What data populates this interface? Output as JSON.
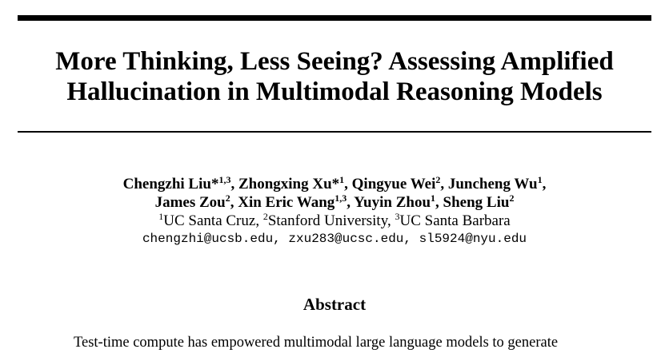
{
  "paper": {
    "title_line1": "More Thinking, Less Seeing? Assessing Amplified",
    "title_line2": "Hallucination in Multimodal Reasoning Models",
    "authors_line1": [
      {
        "name": "Chengzhi Liu*",
        "sup": "1,3",
        "sep": ", "
      },
      {
        "name": "Zhongxing Xu*",
        "sup": "1",
        "sep": ", "
      },
      {
        "name": "Qingyue Wei",
        "sup": "2",
        "sep": ", "
      },
      {
        "name": "Juncheng Wu",
        "sup": "1",
        "sep": ","
      }
    ],
    "authors_line2": [
      {
        "name": "James Zou",
        "sup": "2",
        "sep": ", "
      },
      {
        "name": "Xin Eric Wang",
        "sup": "1,3",
        "sep": ", "
      },
      {
        "name": "Yuyin Zhou",
        "sup": "1",
        "sep": ", "
      },
      {
        "name": "Sheng Liu",
        "sup": "2",
        "sep": ""
      }
    ],
    "affiliations": [
      {
        "sup": "1",
        "name": "UC Santa Cruz",
        "sep": ", "
      },
      {
        "sup": "2",
        "name": "Stanford University",
        "sep": ", "
      },
      {
        "sup": "3",
        "name": "UC Santa Barbara",
        "sep": ""
      }
    ],
    "emails": "chengzhi@ucsb.edu, zxu283@ucsc.edu, sl5924@nyu.edu",
    "abstract_heading": "Abstract",
    "abstract_first_line": "Test-time compute has empowered multimodal large language models to generate"
  }
}
